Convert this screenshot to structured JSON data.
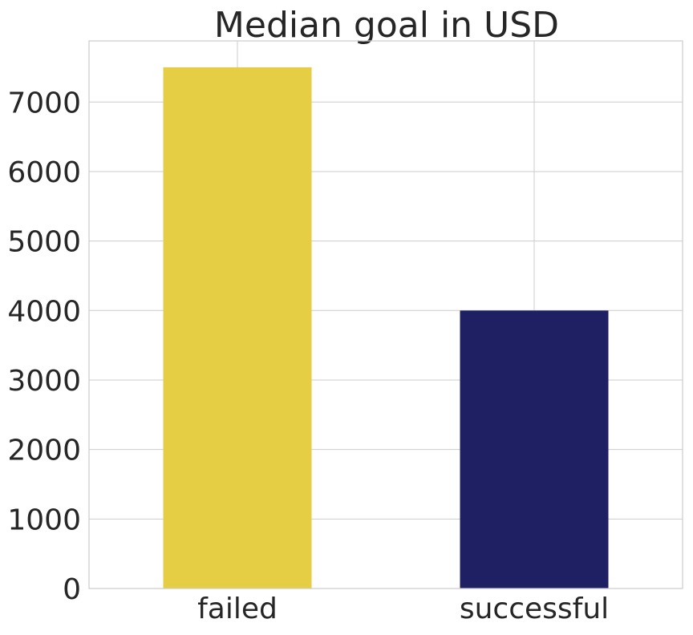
{
  "chart_data": {
    "type": "bar",
    "title": "Median goal in USD",
    "categories": [
      "failed",
      "successful"
    ],
    "values": [
      7500,
      4000
    ],
    "colors": [
      "#e5ce43",
      "#1f1f63"
    ],
    "xlabel": "",
    "ylabel": "",
    "ylim": [
      0,
      7880
    ],
    "yticks": [
      0,
      1000,
      2000,
      3000,
      4000,
      5000,
      6000,
      7000
    ],
    "grid": true,
    "legend": "none"
  }
}
